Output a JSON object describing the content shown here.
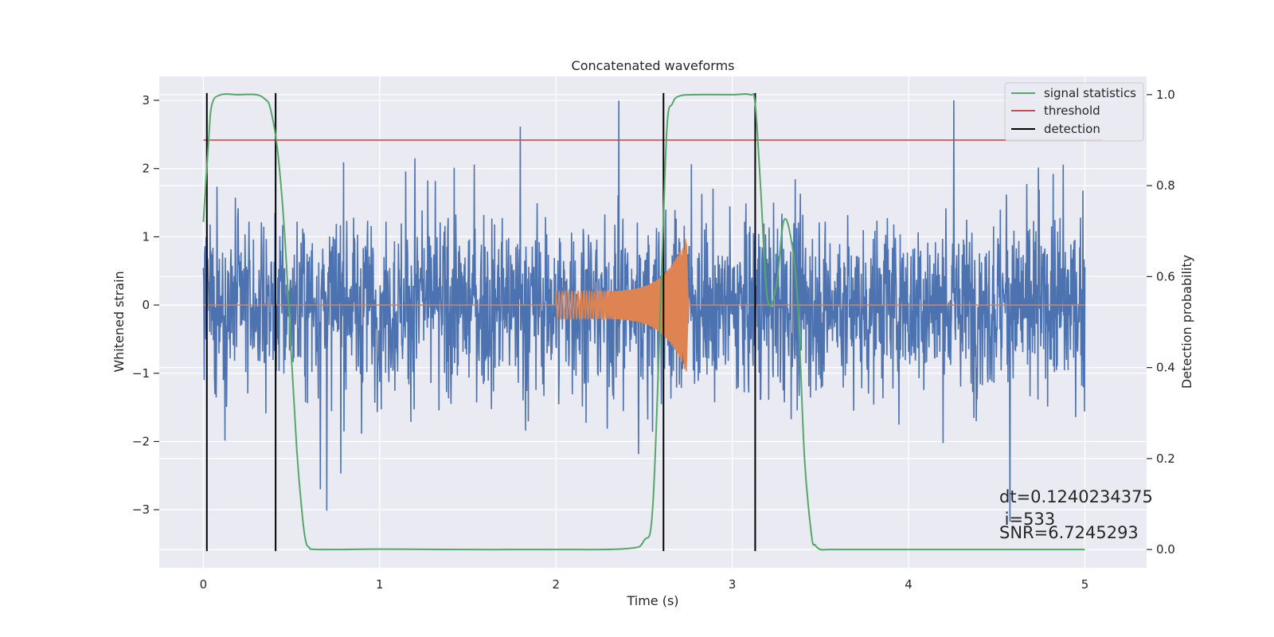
{
  "chart_data": {
    "type": "line",
    "title": "Concatenated waveforms",
    "xlabel": "Time (s)",
    "ylabel_left": "Whitened strain",
    "ylabel_right": "Detection probability",
    "xlim": [
      -0.25,
      5.35
    ],
    "ylim_left": [
      -3.85,
      3.35
    ],
    "ylim_right": [
      -0.04,
      1.04
    ],
    "x_ticks": [
      0,
      1,
      2,
      3,
      4,
      5
    ],
    "y_ticks_left": [
      -3,
      -2,
      -1,
      0,
      1,
      2,
      3
    ],
    "y_ticks_right": [
      0.0,
      0.2,
      0.4,
      0.6,
      0.8,
      1.0
    ],
    "x_tick_labels": [
      "0",
      "1",
      "2",
      "3",
      "4",
      "5"
    ],
    "y_tick_labels_left": [
      "−3",
      "−2",
      "−1",
      "0",
      "1",
      "2",
      "3"
    ],
    "y_tick_labels_right": [
      "0.0",
      "0.2",
      "0.4",
      "0.6",
      "0.8",
      "1.0"
    ],
    "grid": true,
    "legend_position": "top-right",
    "colors": {
      "noise": "#4c72b0",
      "template": "#dd8452",
      "signal_statistics": "#55a868",
      "threshold": "#c44e52",
      "detection": "#000000",
      "axes_bg": "#eaeaf2",
      "grid": "#ffffff"
    },
    "legend": [
      {
        "label": "signal statistics",
        "color": "#55a868"
      },
      {
        "label": "threshold",
        "color": "#c44e52"
      },
      {
        "label": "detection",
        "color": "#000000"
      }
    ],
    "noise_series": {
      "x_start": 0.0,
      "x_end": 5.0,
      "envelope": [
        -3.5,
        3.0
      ],
      "axis": "left"
    },
    "template_series": {
      "axis": "left",
      "x_start": 2.0,
      "x_end": 2.75,
      "amplitude_start": 0.2,
      "amplitude_peak": 1.0,
      "peak_time": 2.74
    },
    "threshold": {
      "value": 0.9,
      "x": [
        0.0,
        5.1
      ],
      "axis": "right"
    },
    "detections": [
      0.02,
      0.41,
      2.61,
      3.13
    ],
    "signal_statistics": {
      "axis": "right",
      "x": [
        0.0,
        0.03,
        0.05,
        0.1,
        0.2,
        0.3,
        0.35,
        0.38,
        0.42,
        0.46,
        0.5,
        0.53,
        0.56,
        0.58,
        0.6,
        0.65,
        1.0,
        1.5,
        2.0,
        2.4,
        2.5,
        2.55,
        2.6,
        2.63,
        2.66,
        2.7,
        2.8,
        3.0,
        3.1,
        3.13,
        3.16,
        3.2,
        3.25,
        3.29,
        3.33,
        3.37,
        3.41,
        3.45,
        3.47,
        3.5,
        3.55,
        3.7,
        4.0,
        4.5,
        5.0
      ],
      "y": [
        0.72,
        0.9,
        0.98,
        1.0,
        1.0,
        1.0,
        0.99,
        0.97,
        0.88,
        0.7,
        0.42,
        0.22,
        0.08,
        0.02,
        0.005,
        0.0,
        0.001,
        0.0,
        0.0,
        0.002,
        0.02,
        0.1,
        0.62,
        0.93,
        0.98,
        0.997,
        1.0,
        1.0,
        1.0,
        0.98,
        0.8,
        0.55,
        0.58,
        0.72,
        0.69,
        0.55,
        0.2,
        0.03,
        0.01,
        0.0,
        0.0,
        0.0,
        0.0,
        0.0,
        0.0
      ]
    },
    "annotations": [
      "dt=0.1240234375",
      " i=533",
      "SNR=6.7245293"
    ]
  }
}
